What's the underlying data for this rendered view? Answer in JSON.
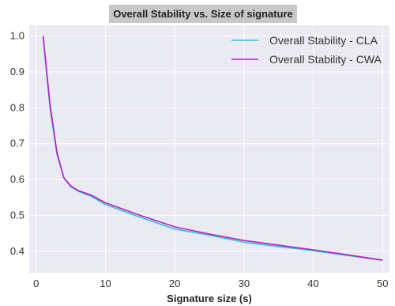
{
  "chart_data": {
    "type": "line",
    "title": "Overall Stability vs. Size of signature",
    "xlabel": "Signature size (s)",
    "ylabel": "",
    "xlim": [
      -1,
      51
    ],
    "ylim": [
      0.34,
      1.03
    ],
    "xticks": [
      0,
      10,
      20,
      30,
      40,
      50
    ],
    "yticks": [
      0.4,
      0.5,
      0.6,
      0.7,
      0.8,
      0.9,
      1.0
    ],
    "ytick_labels": [
      "0.4",
      "0.5",
      "0.6",
      "0.7",
      "0.8",
      "0.9",
      "1.0"
    ],
    "grid": true,
    "legend_position": "top-right",
    "x": [
      1,
      2,
      3,
      4,
      5,
      6,
      8,
      10,
      15,
      20,
      25,
      30,
      35,
      40,
      45,
      50
    ],
    "series": [
      {
        "name": "Overall Stability - CLA",
        "color": "#2ec4cf",
        "values": [
          1.0,
          0.8,
          0.67,
          0.605,
          0.58,
          0.568,
          0.553,
          0.53,
          0.495,
          0.462,
          0.445,
          0.425,
          0.413,
          0.402,
          0.388,
          0.375
        ]
      },
      {
        "name": "Overall Stability - CWA",
        "color": "#b41fc8",
        "values": [
          1.0,
          0.81,
          0.675,
          0.605,
          0.582,
          0.57,
          0.556,
          0.535,
          0.5,
          0.468,
          0.448,
          0.43,
          0.417,
          0.404,
          0.39,
          0.375
        ]
      }
    ]
  },
  "colors": {
    "plot_background": "#eaeaf2",
    "grid": "#ffffff",
    "title_background": "#c8c8c8"
  }
}
